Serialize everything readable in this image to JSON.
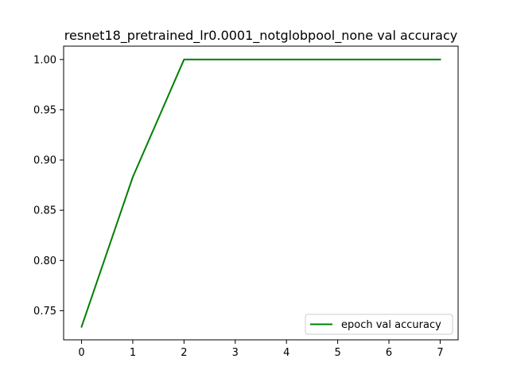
{
  "chart_data": {
    "type": "line",
    "title": "resnet18_pretrained_lr0.0001_notglobpool_none val accuracy",
    "xlabel": "",
    "ylabel": "",
    "x": [
      0,
      1,
      2,
      3,
      4,
      5,
      6,
      7
    ],
    "series": [
      {
        "name": "epoch val accuracy",
        "color": "#008000",
        "values": [
          0.734,
          0.883,
          1.0,
          1.0,
          1.0,
          1.0,
          1.0,
          1.0
        ]
      }
    ],
    "xlim": [
      -0.35,
      7.35
    ],
    "ylim": [
      0.721,
      1.0133
    ],
    "xticks": [
      0,
      1,
      2,
      3,
      4,
      5,
      6,
      7
    ],
    "xtick_labels": [
      "0",
      "1",
      "2",
      "3",
      "4",
      "5",
      "6",
      "7"
    ],
    "yticks": [
      0.75,
      0.8,
      0.85,
      0.9,
      0.95,
      1.0
    ],
    "ytick_labels": [
      "0.75",
      "0.80",
      "0.85",
      "0.90",
      "0.95",
      "1.00"
    ],
    "grid": false,
    "legend_position": "lower right"
  }
}
